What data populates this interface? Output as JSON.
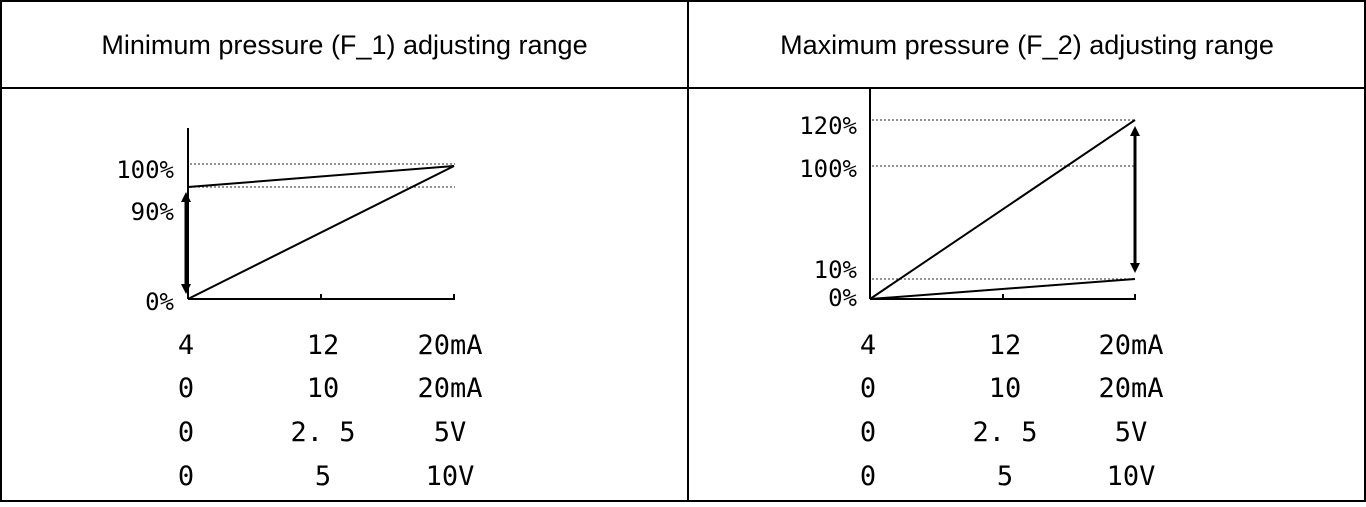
{
  "left": {
    "title": "Minimum pressure (F_1) adjusting range",
    "y_ticks": [
      "100%",
      "90%",
      "0%"
    ],
    "scales": [
      [
        "4",
        "12",
        "20mA"
      ],
      [
        "0",
        "10",
        "20mA"
      ],
      [
        "0",
        "2. 5",
        "5V"
      ],
      [
        "0",
        "5",
        "10V"
      ]
    ]
  },
  "right": {
    "title": "Maximum pressure (F_2) adjusting range",
    "y_ticks": [
      "120%",
      "100%",
      "10%",
      "0%"
    ],
    "scales": [
      [
        "4",
        "12",
        "20mA"
      ],
      [
        "0",
        "10",
        "20mA"
      ],
      [
        "0",
        "2. 5",
        "5V"
      ],
      [
        "0",
        "5",
        "10V"
      ]
    ]
  },
  "colors": {
    "line": "#000000",
    "guide": "#555555"
  }
}
